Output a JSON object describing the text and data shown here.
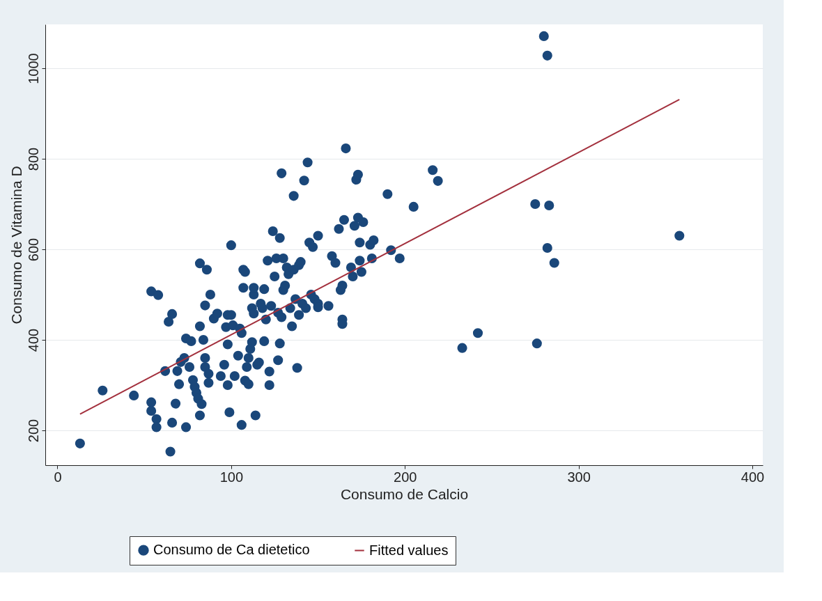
{
  "chart_data": {
    "type": "scatter",
    "xlabel": "Consumo de Calcio",
    "ylabel": "Consumo de Vitamina D",
    "xlim": [
      -7,
      406
    ],
    "ylim": [
      123,
      1097
    ],
    "xticks": [
      0,
      100,
      200,
      300,
      400
    ],
    "yticks": [
      200,
      400,
      600,
      800,
      1000
    ],
    "grid": "y",
    "legend": "bottom",
    "series": [
      {
        "name": "Consumo de Ca dietetico",
        "color": "#1a477a",
        "marker": "circle",
        "x": [
          13,
          26,
          44,
          54,
          58,
          54,
          54,
          57,
          57,
          65,
          64,
          66,
          62,
          66,
          68,
          70,
          69,
          71,
          74,
          74,
          77,
          73,
          76,
          78,
          79,
          80,
          81,
          82,
          83,
          82,
          86,
          82,
          85,
          84,
          85,
          85,
          87,
          87,
          88,
          90,
          92,
          94,
          96,
          98,
          97,
          98,
          98,
          99,
          100,
          100,
          101,
          102,
          104,
          105,
          106,
          107,
          107,
          106,
          108,
          108,
          109,
          110,
          110,
          111,
          112,
          112,
          113,
          113,
          113,
          114,
          115,
          116,
          117,
          118,
          119,
          119,
          120,
          121,
          122,
          122,
          123,
          124,
          125,
          126,
          127,
          127,
          128,
          128,
          129,
          129,
          130,
          130,
          131,
          132,
          133,
          134,
          135,
          136,
          136,
          137,
          138,
          139,
          139,
          140,
          141,
          142,
          143,
          144,
          145,
          146,
          147,
          148,
          150,
          150,
          150,
          156,
          158,
          160,
          162,
          163,
          164,
          164,
          164,
          165,
          166,
          169,
          170,
          171,
          172,
          173,
          173,
          174,
          174,
          175,
          176,
          180,
          182,
          181,
          190,
          192,
          197,
          205,
          216,
          219,
          233,
          242,
          275,
          276,
          280,
          282,
          282,
          283,
          286,
          358
        ],
        "values": [
          171,
          288,
          277,
          507,
          499,
          262,
          243,
          225,
          207,
          153,
          440,
          457,
          331,
          217,
          259,
          302,
          331,
          351,
          207,
          403,
          397,
          360,
          340,
          311,
          296,
          283,
          270,
          233,
          258,
          569,
          555,
          430,
          476,
          400,
          360,
          340,
          325,
          305,
          500,
          447,
          458,
          320,
          345,
          455,
          428,
          390,
          300,
          240,
          609,
          455,
          432,
          320,
          365,
          425,
          415,
          515,
          555,
          212,
          550,
          310,
          340,
          360,
          302,
          380,
          395,
          470,
          500,
          515,
          458,
          233,
          345,
          350,
          480,
          470,
          397,
          512,
          445,
          575,
          330,
          300,
          475,
          640,
          540,
          580,
          355,
          460,
          625,
          392,
          768,
          450,
          580,
          510,
          520,
          560,
          545,
          470,
          430,
          718,
          555,
          490,
          338,
          565,
          455,
          572,
          480,
          752,
          470,
          792,
          615,
          500,
          605,
          490,
          630,
          480,
          472,
          475,
          585,
          570,
          645,
          510,
          520,
          445,
          435,
          665,
          823,
          560,
          540,
          652,
          754,
          765,
          670,
          615,
          575,
          550,
          660,
          610,
          620,
          580,
          722,
          598,
          580,
          694,
          775,
          751,
          382,
          415,
          700,
          392,
          1071,
          1028,
          603,
          697,
          570,
          630
        ]
      },
      {
        "name": "Fitted values",
        "color": "#a3303d",
        "type": "line",
        "marker": "none",
        "line_style": "solid",
        "x": [
          13,
          358
        ],
        "values": [
          236,
          931
        ]
      }
    ]
  }
}
